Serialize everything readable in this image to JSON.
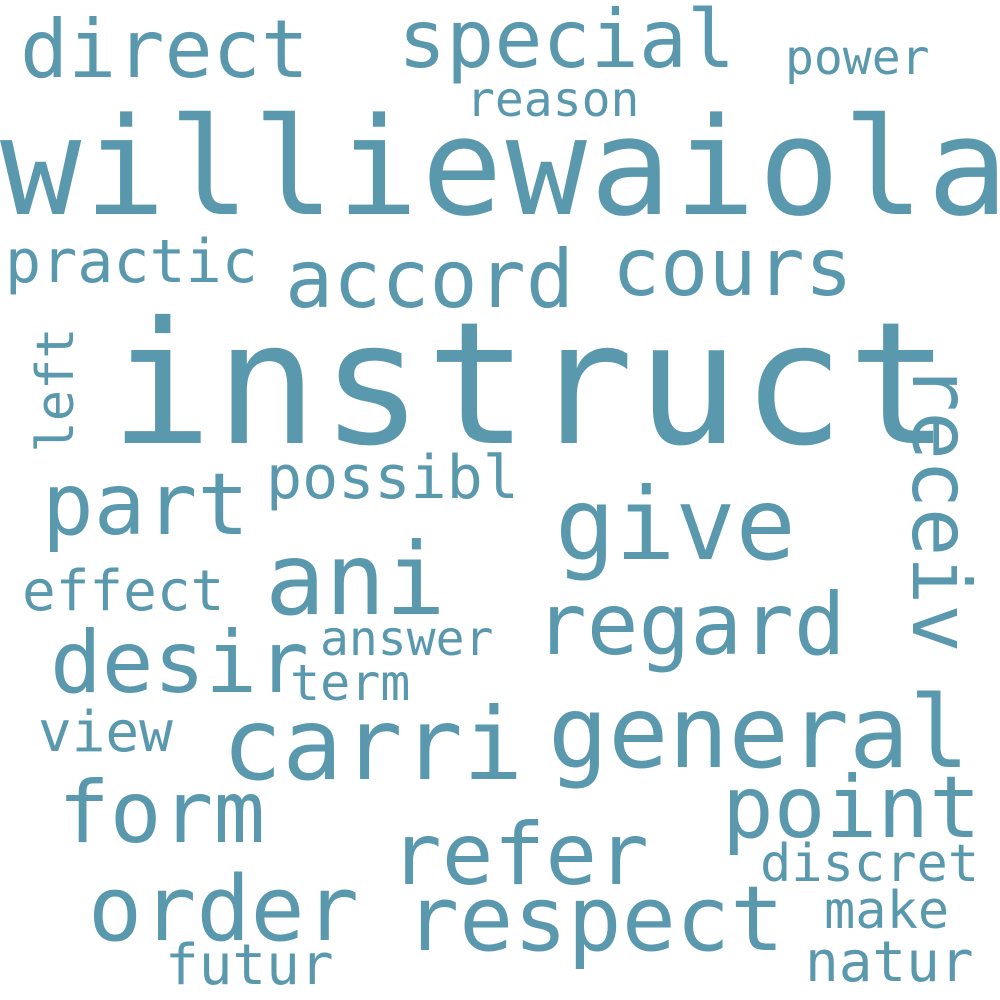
{
  "color": "#5a98ae",
  "words": [
    "williewaiola",
    "instruct",
    "direct",
    "special",
    "power",
    "reason",
    "practic",
    "accord",
    "cours",
    "left",
    "receiv",
    "part",
    "possibl",
    "give",
    "ani",
    "effect",
    "regard",
    "desir",
    "answer",
    "term",
    "view",
    "carri",
    "general",
    "form",
    "point",
    "refer",
    "discret",
    "order",
    "respect",
    "make",
    "futur",
    "natur"
  ]
}
